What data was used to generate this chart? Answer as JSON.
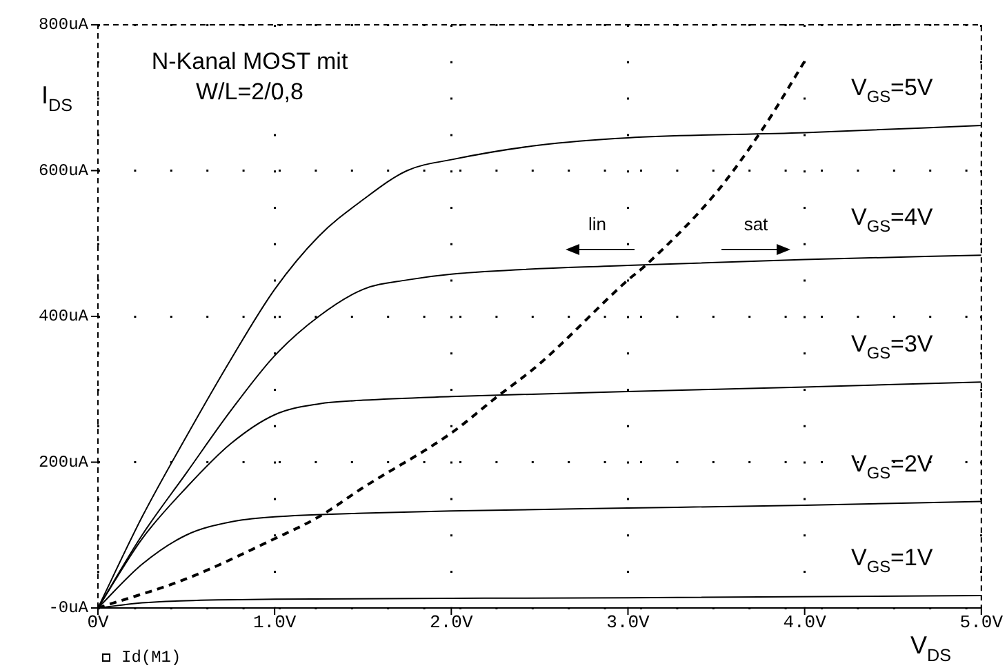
{
  "chart_data": {
    "type": "line",
    "title": "N-Kanal MOST mit\nW/L=2/0,8",
    "xlabel": "V$_{DS}$",
    "ylabel": "I$_{DS}$",
    "marker": "none",
    "line_style": "solid",
    "grid": true,
    "xlim": [
      0,
      5
    ],
    "ylim": [
      0,
      800
    ],
    "xticks": [
      {
        "value": 0,
        "label": "0V"
      },
      {
        "value": 1,
        "label": "1.0V"
      },
      {
        "value": 2,
        "label": "2.0V"
      },
      {
        "value": 3,
        "label": "3.0V"
      },
      {
        "value": 4,
        "label": "4.0V"
      },
      {
        "value": 5,
        "label": "5.0V"
      }
    ],
    "yticks": [
      {
        "value": 0,
        "label": "-0uA"
      },
      {
        "value": 200,
        "label": "200uA"
      },
      {
        "value": 400,
        "label": "400uA"
      },
      {
        "value": 600,
        "label": "600uA"
      },
      {
        "value": 800,
        "label": "800uA"
      }
    ],
    "annotations": [
      "lin",
      "sat",
      "Id(M1)"
    ],
    "series": [
      {
        "name": "V$_{GS}$=5V",
        "color": "#000000",
        "x": [
          0,
          0.25,
          0.5,
          0.75,
          1,
          1.25,
          1.5,
          1.75,
          2,
          2.5,
          3,
          4,
          5
        ],
        "values": [
          0,
          125,
          235,
          340,
          437,
          510,
          560,
          600,
          615,
          635,
          645,
          652,
          662
        ]
      },
      {
        "name": "V$_{GS}$=4V",
        "color": "#000000",
        "x": [
          0,
          0.25,
          0.5,
          0.75,
          1,
          1.25,
          1.5,
          1.75,
          2,
          3,
          4,
          5
        ],
        "values": [
          0,
          100,
          185,
          270,
          346,
          400,
          437,
          450,
          458,
          470,
          478,
          484
        ]
      },
      {
        "name": "V$_{GS}$=3V",
        "color": "#000000",
        "x": [
          0,
          0.25,
          0.5,
          0.75,
          1,
          1.25,
          1.5,
          2,
          3,
          4,
          5
        ],
        "values": [
          0,
          95,
          165,
          225,
          265,
          280,
          285,
          290,
          297,
          303,
          310
        ]
      },
      {
        "name": "V$_{GS}$=2V",
        "color": "#000000",
        "x": [
          0,
          0.25,
          0.5,
          0.75,
          1,
          1.5,
          2,
          3,
          4,
          5
        ],
        "values": [
          0,
          60,
          100,
          118,
          125,
          130,
          133,
          137,
          141,
          146
        ]
      },
      {
        "name": "V$_{GS}$=1V",
        "color": "#000000",
        "x": [
          0,
          0.25,
          0.5,
          1,
          3,
          5
        ],
        "values": [
          0,
          7,
          10,
          12,
          14,
          17
        ]
      },
      {
        "color": "#000000",
        "line_style": "dashed",
        "x": [
          0,
          0.5,
          1,
          1.25,
          1.5,
          2,
          2.25,
          2.5,
          3,
          3.1,
          3.5,
          3.77,
          4
        ],
        "values": [
          0,
          40,
          95,
          125,
          165,
          240,
          288,
          335,
          450,
          470,
          570,
          660,
          750
        ]
      }
    ]
  }
}
